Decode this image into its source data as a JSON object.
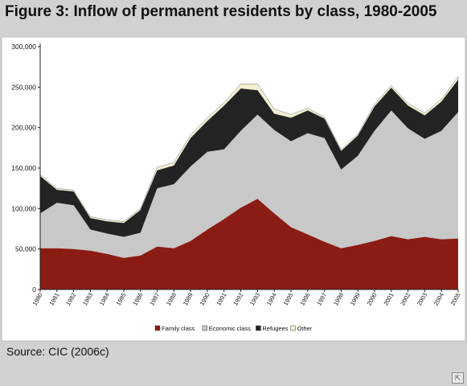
{
  "title": "Figure 3: Inflow of permanent residents by class, 1980-2005",
  "source": "Source: CIC (2006c)",
  "chart_data": {
    "type": "area",
    "stacked": true,
    "x": [
      1980,
      1981,
      1982,
      1983,
      1984,
      1985,
      1986,
      1987,
      1988,
      1989,
      1990,
      1991,
      1992,
      1993,
      1994,
      1995,
      1996,
      1997,
      1998,
      1999,
      2000,
      2001,
      2002,
      2003,
      2004,
      2005
    ],
    "x_tick_labels": [
      "1980",
      "1981",
      "1982",
      "1983",
      "1984",
      "1985",
      "1986",
      "1987",
      "1988",
      "1989",
      "1990",
      "1991",
      "1992",
      "1993",
      "1994",
      "1995",
      "1996",
      "1997",
      "1998",
      "1999",
      "2000",
      "2001",
      "2002",
      "2003",
      "2004",
      "2005"
    ],
    "y_tick_labels": [
      "0",
      "50,000",
      "100,000",
      "150,000",
      "200,000",
      "250,000",
      "300,000"
    ],
    "ylim": [
      0,
      300000
    ],
    "grid": false,
    "legend_position": "bottom",
    "series": [
      {
        "name": "Family class",
        "color": "#8b1c14",
        "values": [
          51000,
          51000,
          50000,
          48000,
          44000,
          39000,
          42000,
          53000,
          51000,
          60000,
          74000,
          87000,
          101000,
          112000,
          94000,
          77000,
          68000,
          59000,
          51000,
          55000,
          60000,
          66000,
          62000,
          65000,
          62000,
          63000
        ]
      },
      {
        "name": "Economic class",
        "color": "#c8c8c8",
        "values": [
          43000,
          56000,
          54000,
          26000,
          25000,
          26000,
          28000,
          72000,
          79000,
          92000,
          96000,
          86000,
          95000,
          104000,
          103000,
          106000,
          125000,
          128000,
          97000,
          110000,
          136000,
          155000,
          137000,
          121000,
          134000,
          156000
        ]
      },
      {
        "name": "Refugees",
        "color": "#232323",
        "values": [
          46000,
          16000,
          17000,
          14000,
          15000,
          17000,
          28000,
          22000,
          23000,
          35000,
          38000,
          54000,
          52000,
          30000,
          20000,
          29000,
          28000,
          24000,
          23000,
          25000,
          30000,
          28000,
          28000,
          29000,
          36000,
          40000
        ]
      },
      {
        "name": "Other",
        "color": "#f2efd2",
        "values": [
          2000,
          2000,
          2000,
          2000,
          2000,
          2000,
          2000,
          4000,
          4000,
          4000,
          4000,
          4000,
          6000,
          8000,
          6000,
          4000,
          3000,
          2000,
          2000,
          2000,
          3000,
          3000,
          3000,
          3000,
          3000,
          4000
        ]
      }
    ]
  }
}
